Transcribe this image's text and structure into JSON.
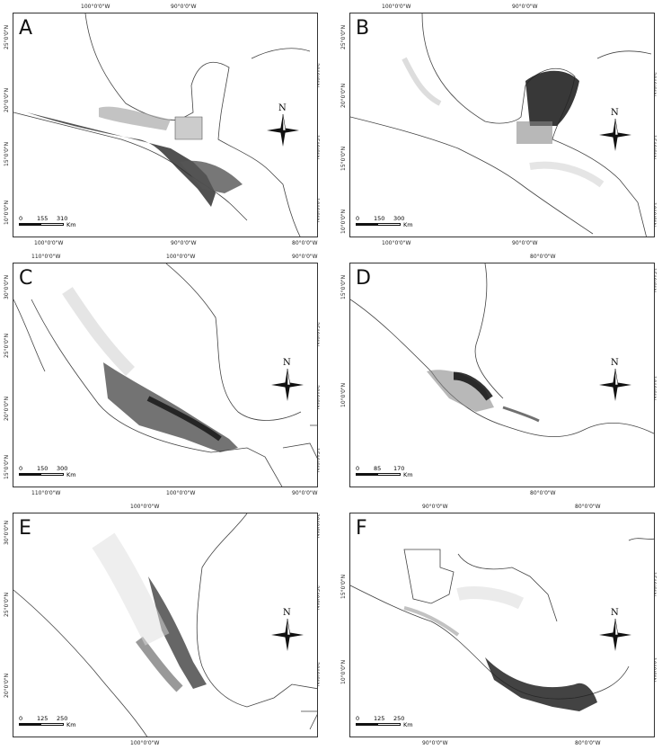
{
  "figure": {
    "panels": [
      {
        "letter": "A",
        "top_ticks": [
          "100°0'0\"W",
          "90°0'0\"W"
        ],
        "bottom_ticks": [
          "100°0'0\"W",
          "90°0'0\"W",
          "80°0'0\"W"
        ],
        "left_ticks": [
          "25°0'0\"N",
          "20°0'0\"N",
          "15°0'0\"N",
          "10°0'0\"N"
        ],
        "right_ticks": [
          "20°0'0\"N",
          "15°0'0\"N",
          "10°0'0\"N"
        ],
        "scale": [
          "0",
          "155",
          "310"
        ],
        "scale_unit": "Km",
        "north": "N"
      },
      {
        "letter": "B",
        "top_ticks": [
          "100°0'0\"W",
          "90°0'0\"W"
        ],
        "bottom_ticks": [
          "100°0'0\"W",
          "90°0'0\"W"
        ],
        "left_ticks": [
          "25°0'0\"N",
          "20°0'0\"N",
          "15°0'0\"N",
          "10°0'0\"N"
        ],
        "right_ticks": [
          "20°0'0\"N",
          "15°0'0\"N",
          "10°0'0\"N"
        ],
        "scale": [
          "0",
          "150",
          "300"
        ],
        "scale_unit": "Km",
        "north": "N"
      },
      {
        "letter": "C",
        "top_ticks": [
          "110°0'0\"W",
          "100°0'0\"W",
          "90°0'0\"W"
        ],
        "bottom_ticks": [
          "110°0'0\"W",
          "100°0'0\"W",
          "90°0'0\"W"
        ],
        "left_ticks": [
          "30°0'0\"N",
          "25°0'0\"N",
          "20°0'0\"N",
          "15°0'0\"N"
        ],
        "right_ticks": [
          "25°0'0\"N",
          "20°0'0\"N",
          "15°0'0\"N"
        ],
        "scale": [
          "0",
          "150",
          "300"
        ],
        "scale_unit": "Km",
        "north": "N"
      },
      {
        "letter": "D",
        "top_ticks": [
          "80°0'0\"W"
        ],
        "bottom_ticks": [
          "80°0'0\"W"
        ],
        "left_ticks": [
          "15°0'0\"N",
          "10°0'0\"N"
        ],
        "right_ticks": [
          "15°0'0\"N",
          "10°0'0\"N"
        ],
        "scale": [
          "0",
          "85",
          "170"
        ],
        "scale_unit": "Km",
        "north": "N"
      },
      {
        "letter": "E",
        "top_ticks": [
          "100°0'0\"W"
        ],
        "bottom_ticks": [
          "100°0'0\"W"
        ],
        "left_ticks": [
          "30°0'0\"N",
          "25°0'0\"N",
          "20°0'0\"N"
        ],
        "right_ticks": [
          "30°0'0\"N",
          "25°0'0\"N",
          "20°0'0\"N"
        ],
        "scale": [
          "0",
          "125",
          "250"
        ],
        "scale_unit": "Km",
        "north": "N"
      },
      {
        "letter": "F",
        "top_ticks": [
          "90°0'0\"W",
          "80°0'0\"W"
        ],
        "bottom_ticks": [
          "90°0'0\"W",
          "80°0'0\"W"
        ],
        "left_ticks": [
          "15°0'0\"N",
          "10°0'0\"N"
        ],
        "right_ticks": [
          "15°0'0\"N",
          "10°0'0\"N"
        ],
        "scale": [
          "0",
          "125",
          "250"
        ],
        "scale_unit": "Km",
        "north": "N"
      }
    ]
  }
}
